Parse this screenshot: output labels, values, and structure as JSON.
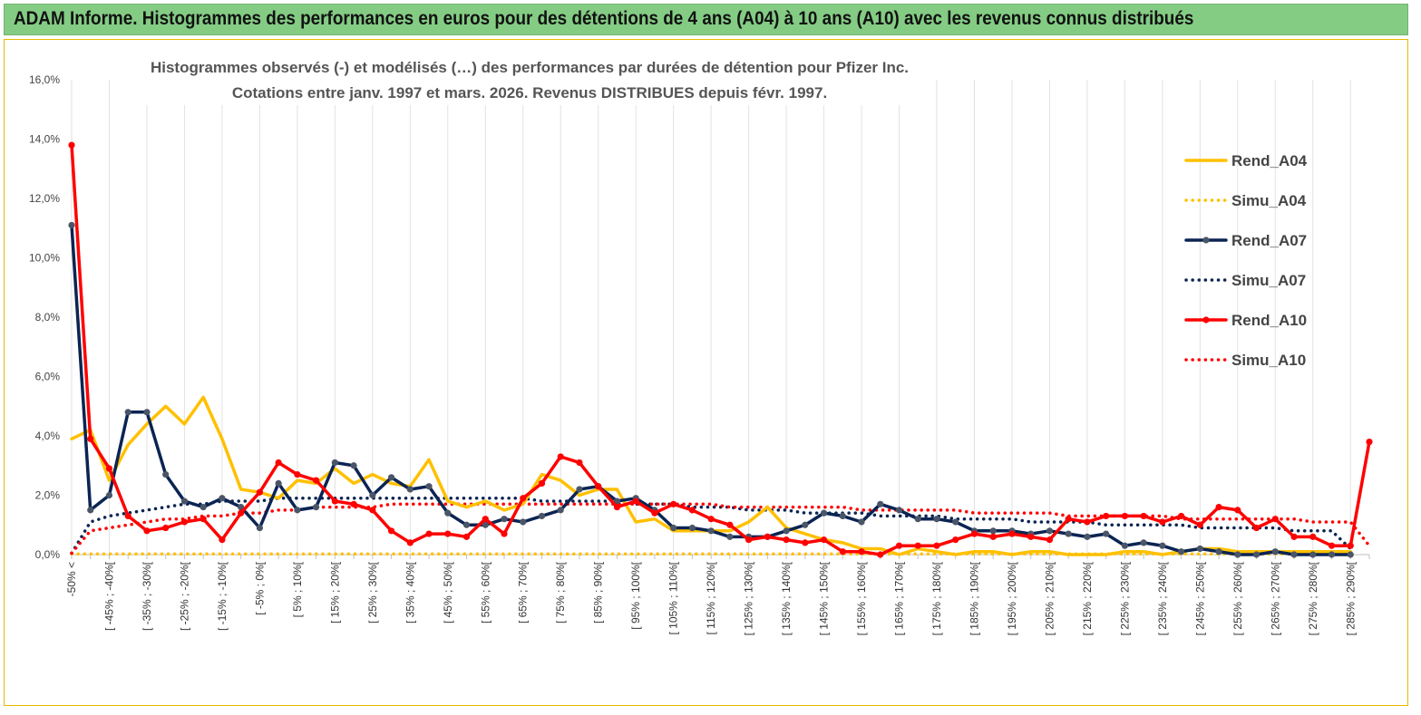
{
  "header": {
    "title": "ADAM Informe. Histogrammes des performances en euros pour des détentions de 4 ans (A04) à 10 ans (A10) avec les revenus connus distribués",
    "background": "#84cc84"
  },
  "chart_data": {
    "type": "line",
    "title_lines": [
      "Histogrammes observés (-) et modélisés (…) des performances par durées de détention pour Pfizer Inc.",
      "Cotations entre janv. 1997 et mars. 2026. Revenus DISTRIBUES depuis févr. 1997."
    ],
    "ylim": [
      0,
      16
    ],
    "yticks": [
      "0,0%",
      "2,0%",
      "4,0%",
      "6,0%",
      "8,0%",
      "10,0%",
      "12,0%",
      "14,0%",
      "16,0%"
    ],
    "grid": "vertical gridlines at each labeled category",
    "legend_position": "right",
    "x_labels": [
      "-50% <",
      "[ -45% ; -40%[",
      "[ -35% ; -30%[",
      "[ -25% ; -20%[",
      "[ -15% ; -10%[",
      "[ -5% ; 0%[",
      "[ 5% ; 10%[",
      "[ 15% ; 20%[",
      "[ 25% ; 30%[",
      "[ 35% ; 40%[",
      "[ 45% ; 50%[",
      "[ 55% ; 60%[",
      "[ 65% ; 70%[",
      "[ 75% ; 80%[",
      "[ 85% ; 90%[",
      "[ 95% ; 100%[",
      "[ 105% ; 110%[",
      "[ 115% ; 120%[",
      "[ 125% ; 130%[",
      "[ 135% ; 140%[",
      "[ 145% ; 150%[",
      "[ 155% ; 160%[",
      "[ 165% ; 170%[",
      "[ 175% ; 180%[",
      "[ 185% ; 190%[",
      "[ 195% ; 200%[",
      "[ 205% ; 210%[",
      "[ 215% ; 220%[",
      "[ 225% ; 230%[",
      "[ 235% ; 240%[",
      "[ 245% ; 250%[",
      "[ 255% ; 260%[",
      "[ 265% ; 270%[",
      "[ 275% ; 280%[",
      "[ 285% ; 290%["
    ],
    "series": [
      {
        "name": "Rend_A04",
        "color": "#ffc000",
        "style": "solid",
        "values": [
          3.9,
          4.2,
          2.5,
          3.7,
          4.4,
          5.0,
          4.4,
          5.3,
          3.9,
          2.2,
          2.1,
          1.9,
          2.5,
          2.4,
          2.9,
          2.4,
          2.7,
          2.4,
          2.3,
          3.2,
          1.8,
          1.6,
          1.8,
          1.5,
          1.7,
          2.7,
          2.5,
          2.0,
          2.2,
          2.2,
          1.1,
          1.2,
          0.8,
          0.8,
          0.8,
          0.8,
          1.1,
          1.6,
          0.9,
          0.7,
          0.5,
          0.4,
          0.2,
          0.2,
          0.0,
          0.2,
          0.1,
          0.0,
          0.1,
          0.1,
          0.0,
          0.1,
          0.1,
          0.0,
          0.0,
          0.0,
          0.1,
          0.1,
          0.0,
          0.1,
          0.2,
          0.2,
          0.1,
          0.1,
          0.1,
          0.1,
          0.1,
          0.1,
          0.1
        ]
      },
      {
        "name": "Simu_A04",
        "color": "#ffc000",
        "style": "dotted",
        "values": [
          0.02,
          0.02,
          0.02,
          0.02,
          0.02,
          0.02,
          0.02,
          0.02,
          0.02,
          0.02,
          0.02,
          0.02,
          0.02,
          0.02,
          0.02,
          0.02,
          0.02,
          0.02,
          0.02,
          0.02,
          0.02,
          0.02,
          0.02,
          0.02,
          0.02,
          0.02,
          0.02,
          0.02,
          0.02,
          0.02,
          0.02,
          0.02,
          0.02,
          0.02,
          0.02,
          0.02,
          0.02,
          0.02,
          0.02,
          0.02,
          0.02,
          0.02,
          0.02,
          0.02,
          0.02,
          0.02,
          0.02,
          0.02,
          0.02,
          0.02,
          0.02,
          0.02,
          0.02,
          0.02,
          0.02,
          0.02,
          0.02,
          0.02,
          0.02,
          0.02,
          0.02,
          0.02,
          0.02,
          0.02,
          0.02,
          0.02,
          0.02,
          0.02,
          0.02
        ]
      },
      {
        "name": "Rend_A07",
        "color": "#0b2453",
        "style": "solid",
        "values": [
          11.1,
          1.5,
          2.0,
          4.8,
          4.8,
          2.7,
          1.8,
          1.6,
          1.9,
          1.6,
          0.9,
          2.4,
          1.5,
          1.6,
          3.1,
          3.0,
          2.0,
          2.6,
          2.2,
          2.3,
          1.4,
          1.0,
          1.0,
          1.2,
          1.1,
          1.3,
          1.5,
          2.2,
          2.3,
          1.8,
          1.9,
          1.5,
          0.9,
          0.9,
          0.8,
          0.6,
          0.6,
          0.6,
          0.8,
          1.0,
          1.4,
          1.3,
          1.1,
          1.7,
          1.5,
          1.2,
          1.2,
          1.1,
          0.8,
          0.8,
          0.8,
          0.7,
          0.8,
          0.7,
          0.6,
          0.7,
          0.3,
          0.4,
          0.3,
          0.1,
          0.2,
          0.1,
          0.0,
          0.0,
          0.1,
          0.0,
          0.0,
          0.0,
          0.0
        ]
      },
      {
        "name": "Simu_A07",
        "color": "#0b2453",
        "style": "dotted",
        "values": [
          0.05,
          1.1,
          1.3,
          1.4,
          1.5,
          1.6,
          1.7,
          1.7,
          1.8,
          1.8,
          1.8,
          1.9,
          1.9,
          1.9,
          1.9,
          1.9,
          1.9,
          1.9,
          1.9,
          1.9,
          1.9,
          1.9,
          1.9,
          1.9,
          1.9,
          1.8,
          1.8,
          1.8,
          1.8,
          1.8,
          1.7,
          1.7,
          1.7,
          1.6,
          1.6,
          1.6,
          1.5,
          1.5,
          1.5,
          1.4,
          1.4,
          1.4,
          1.4,
          1.3,
          1.3,
          1.3,
          1.3,
          1.2,
          1.2,
          1.2,
          1.2,
          1.1,
          1.1,
          1.1,
          1.1,
          1.0,
          1.0,
          1.0,
          1.0,
          1.0,
          0.9,
          0.9,
          0.9,
          0.9,
          0.9,
          0.8,
          0.8,
          0.8,
          0.2
        ]
      },
      {
        "name": "Rend_A10",
        "color": "#ff0000",
        "style": "solid",
        "values": [
          13.8,
          3.9,
          2.9,
          1.3,
          0.8,
          0.9,
          1.1,
          1.2,
          0.5,
          1.4,
          2.1,
          3.1,
          2.7,
          2.5,
          1.8,
          1.7,
          1.5,
          0.8,
          0.4,
          0.7,
          0.7,
          0.6,
          1.2,
          0.7,
          1.9,
          2.4,
          3.3,
          3.1,
          2.3,
          1.6,
          1.8,
          1.4,
          1.7,
          1.5,
          1.2,
          1.0,
          0.5,
          0.6,
          0.5,
          0.4,
          0.5,
          0.1,
          0.1,
          0.0,
          0.3,
          0.3,
          0.3,
          0.5,
          0.7,
          0.6,
          0.7,
          0.6,
          0.5,
          1.2,
          1.1,
          1.3,
          1.3,
          1.3,
          1.1,
          1.3,
          1.0,
          1.6,
          1.5,
          0.9,
          1.2,
          0.6,
          0.6,
          0.3,
          0.3,
          3.8
        ]
      },
      {
        "name": "Simu_A10",
        "color": "#ff0000",
        "style": "dotted",
        "values": [
          0.05,
          0.8,
          0.9,
          1.0,
          1.1,
          1.2,
          1.2,
          1.3,
          1.3,
          1.4,
          1.4,
          1.5,
          1.5,
          1.6,
          1.6,
          1.6,
          1.6,
          1.7,
          1.7,
          1.7,
          1.7,
          1.7,
          1.7,
          1.7,
          1.7,
          1.7,
          1.7,
          1.7,
          1.7,
          1.7,
          1.7,
          1.7,
          1.7,
          1.7,
          1.7,
          1.6,
          1.6,
          1.6,
          1.6,
          1.6,
          1.6,
          1.6,
          1.5,
          1.5,
          1.5,
          1.5,
          1.5,
          1.5,
          1.4,
          1.4,
          1.4,
          1.4,
          1.4,
          1.3,
          1.3,
          1.3,
          1.3,
          1.3,
          1.3,
          1.2,
          1.2,
          1.2,
          1.2,
          1.2,
          1.2,
          1.2,
          1.1,
          1.1,
          1.1,
          0.3
        ]
      }
    ]
  }
}
